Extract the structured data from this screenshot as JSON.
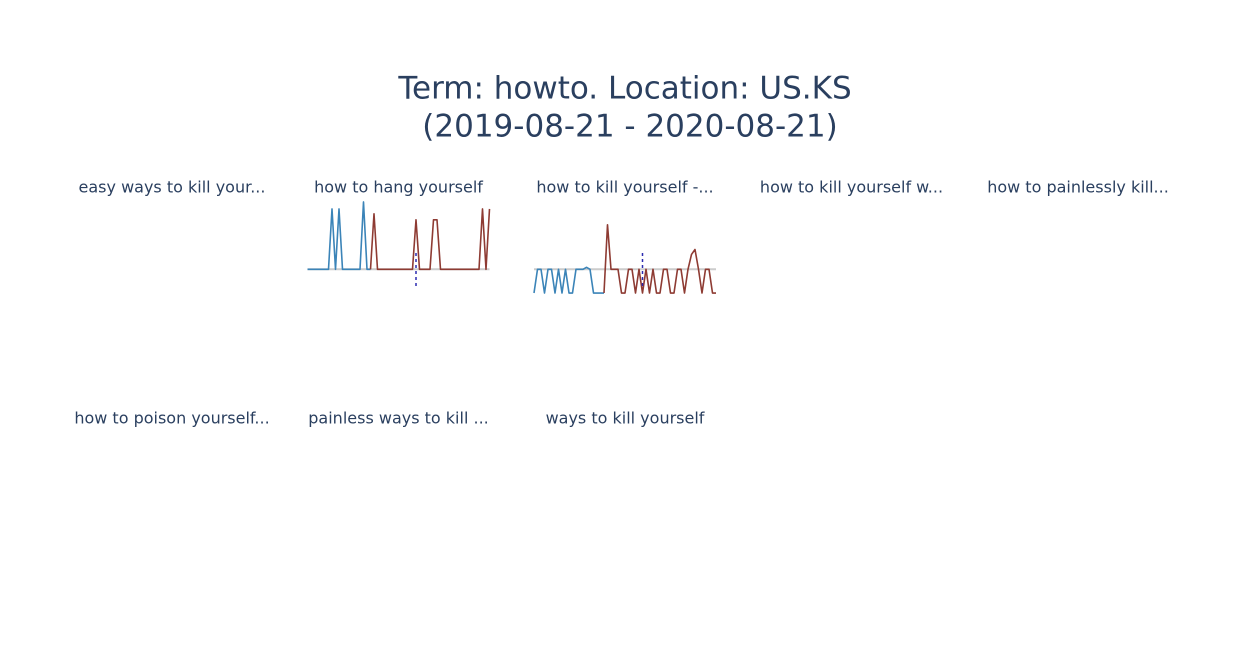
{
  "title": [
    "Term: howto. Location: US.KS",
    "(2019-08-21 - 2020-08-21)"
  ],
  "chart_data": [
    {
      "type": "line",
      "title": "easy ways to kill your..."
    },
    {
      "type": "line",
      "title": "how to hang yourself",
      "x": [
        0,
        1,
        2,
        3,
        4,
        5,
        6,
        7,
        8,
        9,
        10,
        11,
        12,
        13,
        14,
        15,
        16,
        17,
        18,
        19,
        20,
        21,
        22,
        23,
        24,
        25,
        26,
        27,
        28,
        29,
        30,
        31,
        32,
        33,
        34,
        35,
        36,
        37,
        38,
        39,
        40,
        41,
        42,
        43,
        44,
        45,
        46,
        47,
        48,
        49,
        50,
        51,
        52
      ],
      "xlim": [
        0,
        52
      ],
      "ylim": [
        -26,
        70
      ],
      "hline": 0,
      "hline_color": "#cccccc",
      "vline": 31,
      "vline_color": "#2b2bb0",
      "series": [
        {
          "color": "#3b84b8",
          "values": [
            0,
            0,
            0,
            0,
            0,
            0,
            0,
            61,
            0,
            61,
            0,
            0,
            0,
            0,
            0,
            0,
            68,
            0,
            0,
            null,
            null,
            null,
            null,
            null,
            null,
            null,
            null,
            null,
            null,
            null,
            null,
            null,
            null,
            null,
            null,
            null,
            null,
            null,
            null,
            null,
            null,
            null,
            null,
            null,
            null,
            null,
            null,
            null,
            null,
            null,
            null,
            null,
            null
          ]
        },
        {
          "color": "#8e3b33",
          "values": [
            null,
            null,
            null,
            null,
            null,
            null,
            null,
            null,
            null,
            null,
            null,
            null,
            null,
            null,
            null,
            null,
            null,
            null,
            0,
            56,
            0,
            0,
            0,
            0,
            0,
            0,
            0,
            0,
            0,
            0,
            0,
            50,
            0,
            0,
            0,
            0,
            50,
            50,
            0,
            0,
            0,
            0,
            0,
            0,
            0,
            0,
            0,
            0,
            0,
            0,
            61,
            0,
            61
          ]
        }
      ]
    },
    {
      "type": "line",
      "title": "how to kill yourself -...",
      "x": [
        0,
        1,
        2,
        3,
        4,
        5,
        6,
        7,
        8,
        9,
        10,
        11,
        12,
        13,
        14,
        15,
        16,
        17,
        18,
        19,
        20,
        21,
        22,
        23,
        24,
        25,
        26,
        27,
        28,
        29,
        30,
        31,
        32,
        33,
        34,
        35,
        36,
        37,
        38,
        39,
        40,
        41,
        42,
        43,
        44,
        45,
        46,
        47,
        48,
        49,
        50,
        51,
        52
      ],
      "xlim": [
        0,
        52
      ],
      "ylim": [
        -26,
        70
      ],
      "hline": 0,
      "hline_color": "#cccccc",
      "vline": 31,
      "vline_color": "#2b2bb0",
      "series": [
        {
          "color": "#3b84b8",
          "values": [
            -24,
            0,
            0,
            -24,
            0,
            0,
            -24,
            0,
            -24,
            0,
            -24,
            -24,
            0,
            0,
            0,
            2,
            0,
            -24,
            -24,
            -24,
            -24,
            null,
            null,
            null,
            null,
            null,
            null,
            null,
            null,
            null,
            null,
            null,
            null,
            null,
            null,
            null,
            null,
            null,
            null,
            null,
            null,
            null,
            null,
            null,
            null,
            null,
            null,
            null,
            null,
            null,
            null,
            null,
            null
          ]
        },
        {
          "color": "#8e3b33",
          "values": [
            null,
            null,
            null,
            null,
            null,
            null,
            null,
            null,
            null,
            null,
            null,
            null,
            null,
            null,
            null,
            null,
            null,
            null,
            null,
            null,
            -24,
            45,
            0,
            0,
            0,
            -24,
            -24,
            0,
            0,
            -24,
            0,
            -24,
            0,
            -24,
            0,
            -24,
            -24,
            0,
            0,
            -24,
            -24,
            0,
            0,
            -24,
            0,
            15,
            20,
            0,
            -24,
            0,
            0,
            -24,
            -24
          ]
        }
      ]
    },
    {
      "type": "line",
      "title": "how to kill yourself w..."
    },
    {
      "type": "line",
      "title": "how to painlessly kill..."
    },
    {
      "type": "line",
      "title": "how to poison yourself..."
    },
    {
      "type": "line",
      "title": "painless ways to kill ..."
    },
    {
      "type": "line",
      "title": "ways to kill yourself"
    }
  ]
}
